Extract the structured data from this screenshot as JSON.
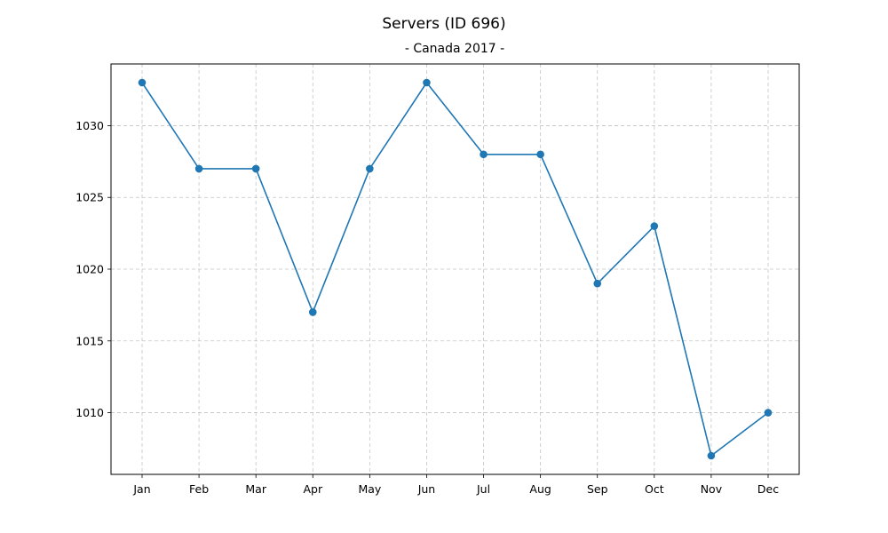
{
  "chart_data": {
    "type": "line",
    "title": "Servers (ID 696)",
    "subtitle": "- Canada 2017 -",
    "xlabel": "",
    "ylabel": "",
    "categories": [
      "Jan",
      "Feb",
      "Mar",
      "Apr",
      "May",
      "Jun",
      "Jul",
      "Aug",
      "Sep",
      "Oct",
      "Nov",
      "Dec"
    ],
    "series": [
      {
        "values": [
          1033,
          1027,
          1027,
          1017,
          1027,
          1033,
          1028,
          1028,
          1019,
          1023,
          1007,
          1010
        ],
        "color": "#1f77b4",
        "marker": "circle"
      }
    ],
    "yticks": [
      1010,
      1015,
      1020,
      1025,
      1030
    ],
    "ylim": [
      1005.7,
      1034.3
    ],
    "grid": true,
    "legend": "none"
  }
}
